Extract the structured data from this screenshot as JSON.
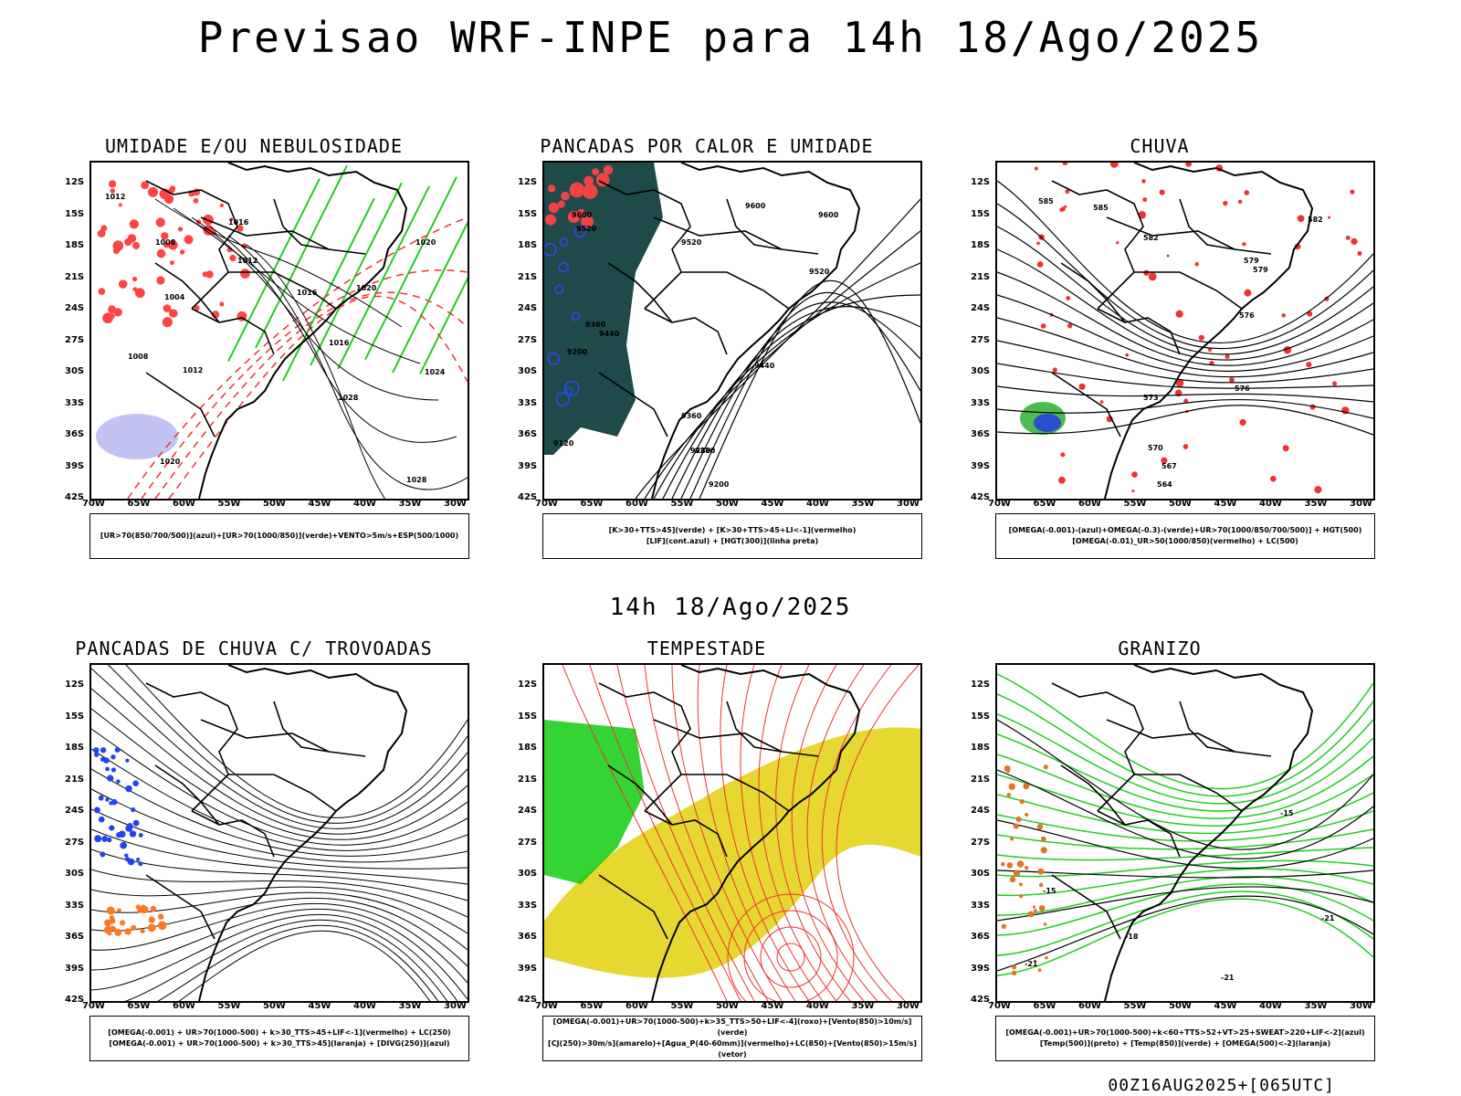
{
  "title": "Previsao WRF-INPE  para 14h 18/Ago/2025",
  "subtitle": "14h 18/Ago/2025",
  "footer": "00Z16AUG2025+[065UTC]",
  "lat_labels": [
    "12S",
    "15S",
    "18S",
    "21S",
    "24S",
    "27S",
    "30S",
    "33S",
    "36S",
    "39S",
    "42S"
  ],
  "lon_labels": [
    "70W",
    "65W",
    "60W",
    "55W",
    "50W",
    "45W",
    "40W",
    "35W",
    "30W"
  ],
  "panels": [
    {
      "title": "UMIDADE E/OU NEBULOSIDADE",
      "legend1": "[UR>70(850/700/500)](azul)+[UR>70(1000/850)](verde)+VENTO>5m/s+ESP(500/1000)",
      "legend2": "",
      "colors": {
        "a": "#ff4444",
        "b": "#22cc22",
        "c": "#aaaaee"
      }
    },
    {
      "title": "PANCADAS POR CALOR E UMIDADE",
      "legend1": "[K>30+TTS>45](verde) + [K>30+TTS>45+LI<-1](vermelho)",
      "legend2": "[LIF](cont.azul) + [HGT(300)](linha preta)",
      "colors": {
        "a": "#1f4a4a",
        "b": "#ee4444",
        "c": "#3344ff"
      }
    },
    {
      "title": "CHUVA",
      "legend1": "[OMEGA(-0.001)-(azul)+OMEGA(-0.3)-(verde)+UR>70(1000/850/700/500)] + HGT(500)",
      "legend2": "[OMEGA(-0.01)_UR>50(1000/850)(vermelho) + LC(500)",
      "colors": {
        "a": "#ee3333",
        "b": "#22aa22",
        "c": "#2233ee"
      }
    },
    {
      "title": "PANCADAS DE CHUVA C/ TROVOADAS",
      "legend1": "[OMEGA(-0.001) + UR>70(1000-500) + k>30_TTS>45+LIF<-1](vermelho) + LC(250)",
      "legend2": "[OMEGA(-0.001) + UR>70(1000-500) + k>30_TTS>45](laranja) + [DIVG(250)](azul)",
      "colors": {
        "a": "#ff7722",
        "b": "#2244ee",
        "c": "#000000"
      }
    },
    {
      "title": "TEMPESTADE",
      "legend1": "[OMEGA(-0.001)+UR>70(1000-500)+k>35_TTS>50+LIF<-4](roxo)+[Vento(850)>10m/s](verde)",
      "legend2": "[CJ(250)>30m/s](amarelo)+[Agua_P(40-60mm)](vermelho)+LC(850)+[Vento(850)>15m/s](vetor)",
      "colors": {
        "a": "#e6d830",
        "b": "#11cc11",
        "c": "#ee3333"
      }
    },
    {
      "title": "GRANIZO",
      "legend1": "[OMEGA(-0.001)+UR>70(1000-500)+k<60+TTS>52+VT>25+SWEAT>220+LIF<-2](azul)",
      "legend2": "[Temp(500)](preto) + [Temp(850)](verde) + [OMEGA(500)<-2](laranja)",
      "colors": {
        "a": "#22cc22",
        "b": "#dd7722",
        "c": "#000000"
      }
    }
  ],
  "contour_labels": {
    "p0": [
      "1012",
      "1016",
      "1008",
      "1012",
      "1004",
      "1008",
      "1012",
      "1020",
      "1016",
      "1020",
      "1024",
      "1028",
      "1020",
      "1028",
      "1016"
    ],
    "p1": [
      "9600",
      "9520",
      "9600",
      "9520",
      "9360",
      "9280",
      "9440",
      "9520",
      "9440",
      "9200",
      "9120",
      "9360",
      "9280",
      "9200",
      "9600"
    ],
    "p2": [
      "585",
      "585",
      "582",
      "579",
      "576",
      "573",
      "570",
      "567",
      "564",
      "582",
      "579",
      "576"
    ],
    "p5": [
      "-15",
      "-21",
      "-18",
      "-21",
      "-21",
      "-15"
    ]
  }
}
